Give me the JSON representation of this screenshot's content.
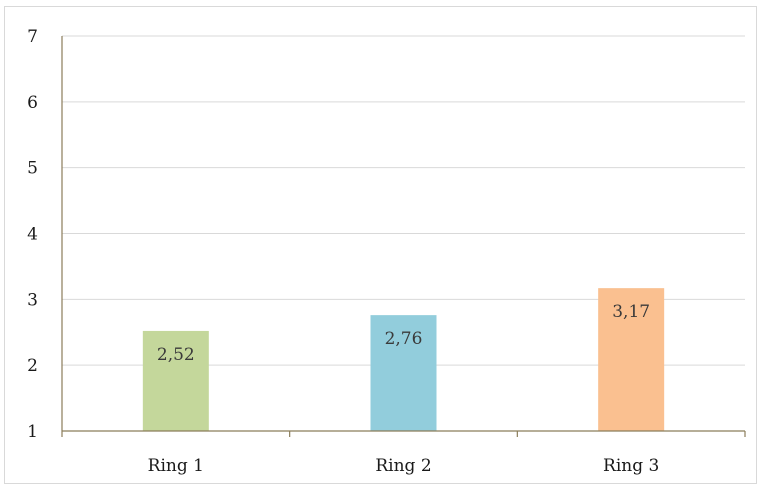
{
  "chart_data": {
    "type": "bar",
    "categories": [
      "Ring 1",
      "Ring 2",
      "Ring 3"
    ],
    "values": [
      2.52,
      2.76,
      3.17
    ],
    "data_labels": [
      "2,52",
      "2,76",
      "3,17"
    ],
    "colors": [
      "#c4d79b",
      "#92cddc",
      "#fac090"
    ],
    "ylim": [
      1,
      7
    ],
    "yticks": [
      1,
      2,
      3,
      4,
      5,
      6,
      7
    ],
    "ytick_labels": [
      "1",
      "2",
      "3",
      "4",
      "5",
      "6",
      "7"
    ],
    "grid": true,
    "axis_color": "#8b7d5a",
    "grid_color": "#d9d9d9"
  }
}
